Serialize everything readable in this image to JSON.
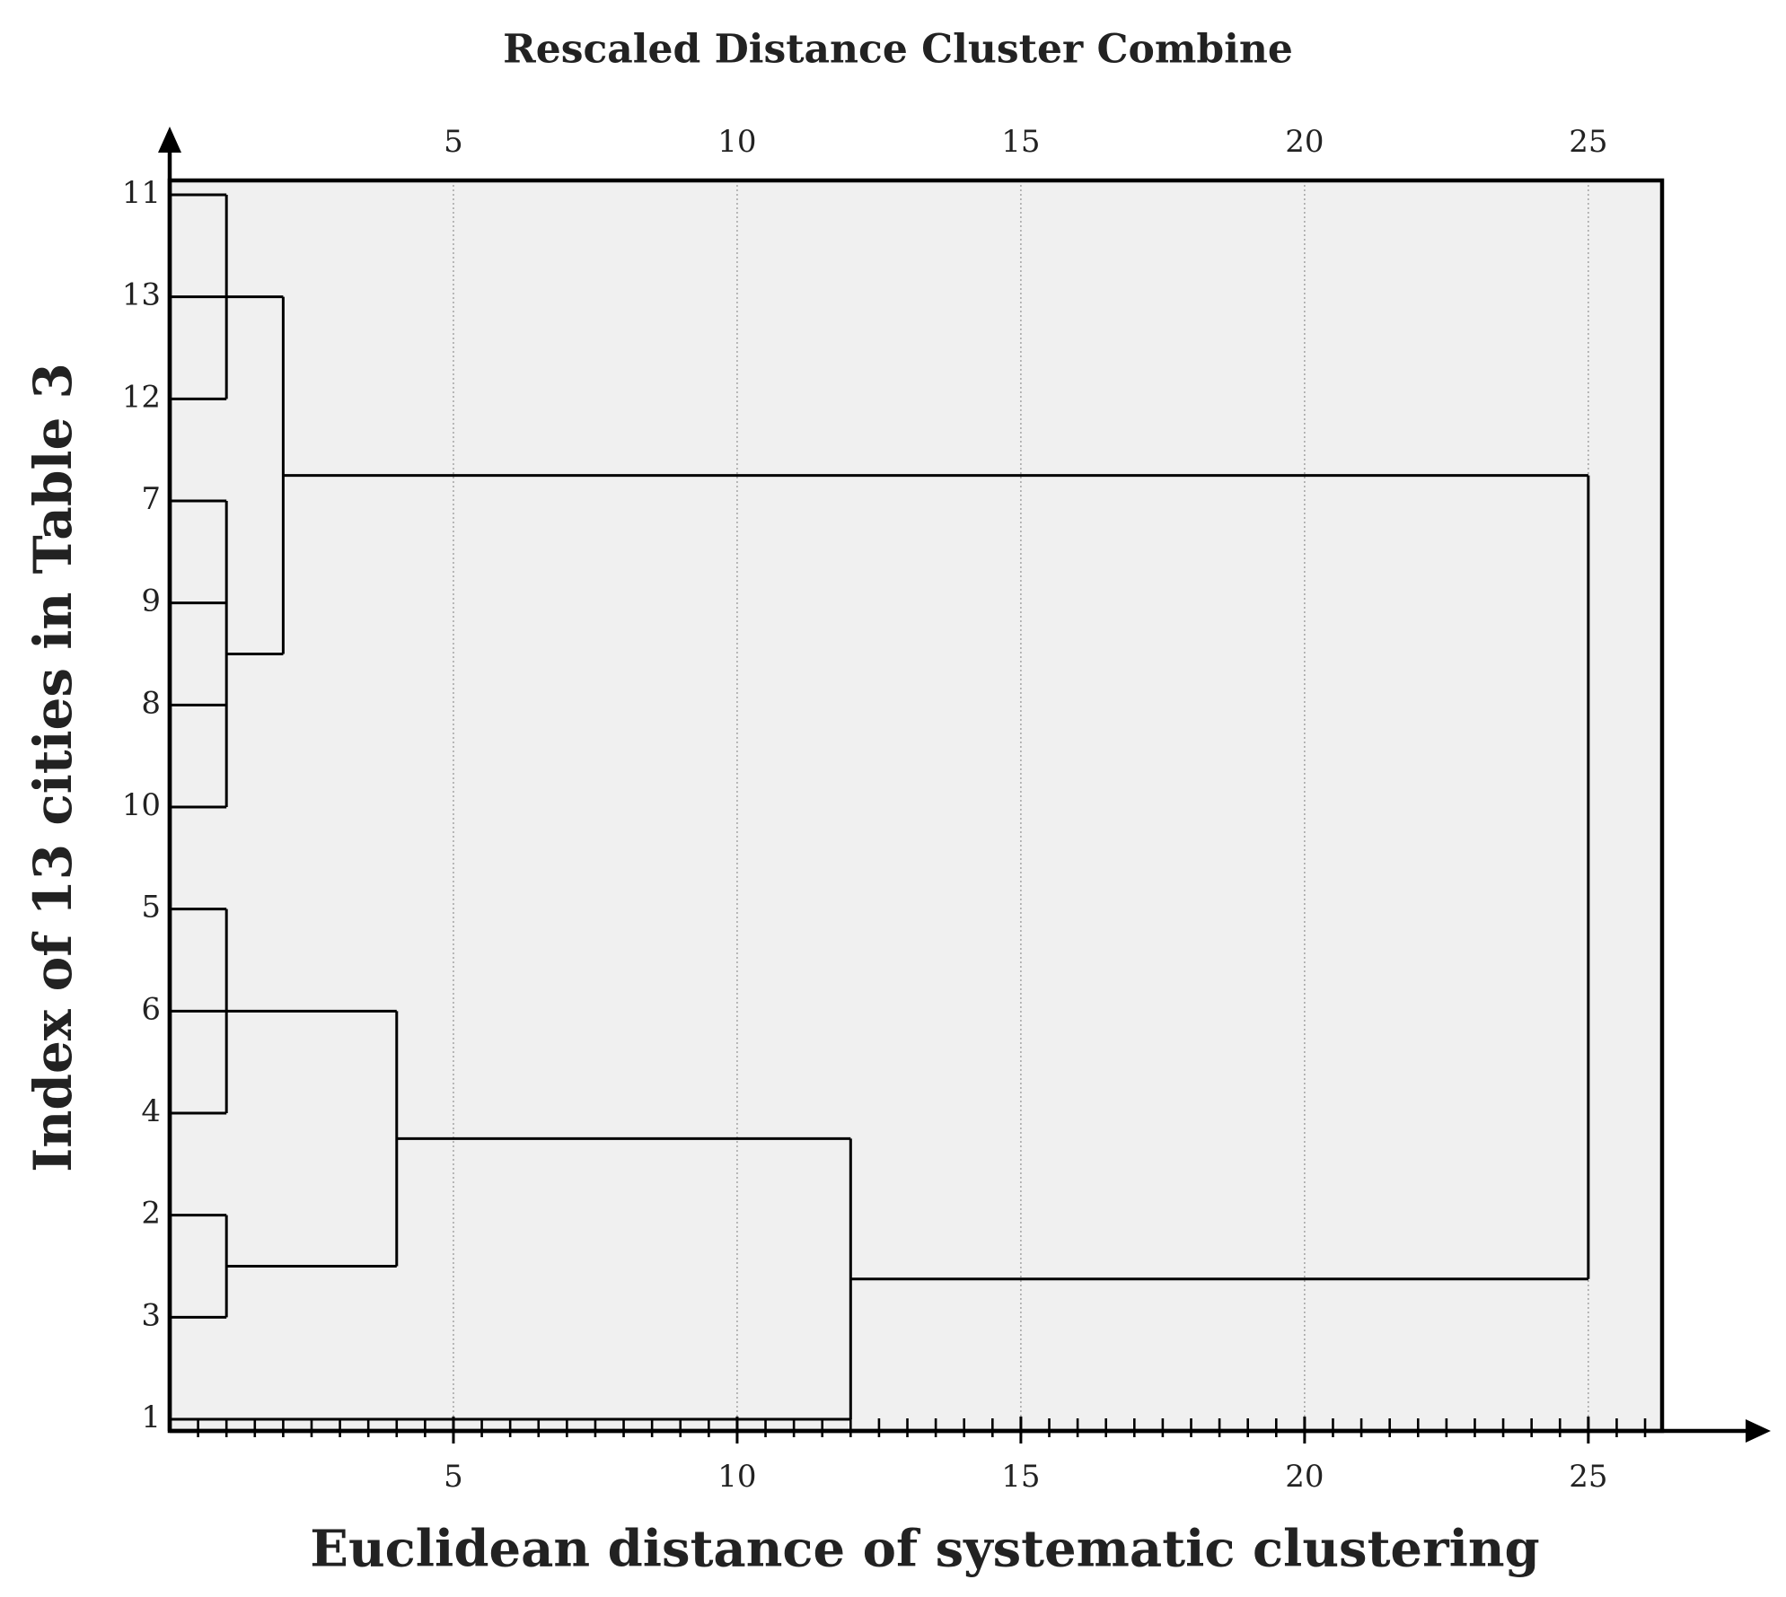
{
  "chart_data": {
    "type": "dendrogram",
    "title": "Rescaled Distance Cluster Combine",
    "xlabel": "Euclidean distance of systematic clustering",
    "ylabel": "Index of 13 cities in Table 3",
    "categories": [
      "11",
      "13",
      "12",
      "7",
      "9",
      "8",
      "10",
      "5",
      "6",
      "4",
      "2",
      "3",
      "1"
    ],
    "merges": [
      {
        "distance": 1,
        "leaves": [
          0,
          1,
          2
        ]
      },
      {
        "distance": 1,
        "leaves": [
          3,
          4,
          5,
          6
        ]
      },
      {
        "distance": 2,
        "clusters": [
          0,
          1
        ]
      },
      {
        "distance": 1,
        "leaves": [
          7,
          8,
          9
        ]
      },
      {
        "distance": 1,
        "leaves": [
          10,
          11
        ]
      },
      {
        "distance": 4,
        "clusters": [
          3,
          4
        ]
      },
      {
        "distance": 12,
        "clusters": [
          5
        ],
        "leaves": [
          12
        ]
      },
      {
        "distance": 25,
        "clusters": [
          2,
          6
        ]
      }
    ],
    "xlim": [
      0,
      26.3
    ],
    "xticks": [
      5,
      10,
      15,
      20,
      25
    ],
    "minor_tick_step": 0.5,
    "grid": true,
    "color": "#000000",
    "background": "#f0f0f0"
  }
}
